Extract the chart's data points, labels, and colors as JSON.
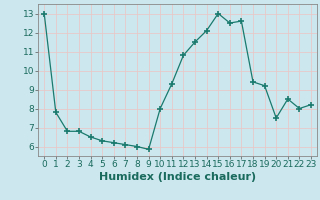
{
  "x": [
    0,
    1,
    2,
    3,
    4,
    5,
    6,
    7,
    8,
    9,
    10,
    11,
    12,
    13,
    14,
    15,
    16,
    17,
    18,
    19,
    20,
    21,
    22,
    23
  ],
  "y": [
    13.0,
    7.8,
    6.8,
    6.8,
    6.5,
    6.3,
    6.2,
    6.1,
    6.0,
    5.85,
    8.0,
    9.3,
    10.8,
    11.5,
    12.1,
    13.0,
    12.5,
    12.6,
    9.4,
    9.2,
    7.5,
    8.5,
    8.0,
    8.2
  ],
  "xlim": [
    -0.5,
    23.5
  ],
  "ylim": [
    5.5,
    13.5
  ],
  "yticks": [
    6,
    7,
    8,
    9,
    10,
    11,
    12,
    13
  ],
  "xticks": [
    0,
    1,
    2,
    3,
    4,
    5,
    6,
    7,
    8,
    9,
    10,
    11,
    12,
    13,
    14,
    15,
    16,
    17,
    18,
    19,
    20,
    21,
    22,
    23
  ],
  "xlabel": "Humidex (Indice chaleur)",
  "line_color": "#1a7a6e",
  "marker": "+",
  "marker_size": 4,
  "background_color": "#cce8ee",
  "grid_color": "#e8c8c8",
  "tick_fontsize": 6.5,
  "xlabel_fontsize": 8,
  "xlabel_fontweight": "bold"
}
